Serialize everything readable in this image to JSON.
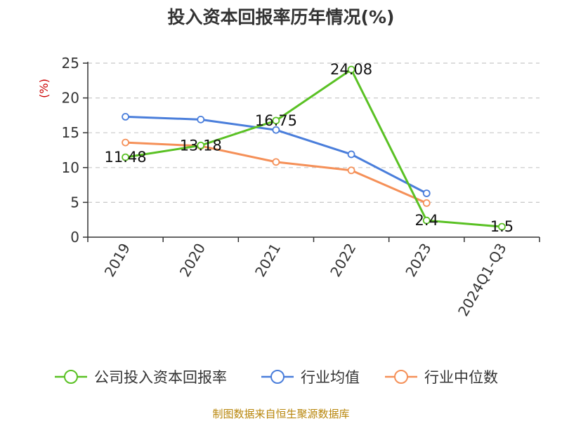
{
  "chart_data": {
    "type": "line",
    "title": "投入资本回报率历年情况(%)",
    "ylabel": "(%)",
    "xlabel": "",
    "categories": [
      "2019",
      "2020",
      "2021",
      "2022",
      "2023",
      "2024Q1-Q3"
    ],
    "ylim": [
      0,
      25
    ],
    "yticks": [
      "0",
      "5",
      "10",
      "15",
      "20",
      "25"
    ],
    "grid": true,
    "legend_position": "bottom",
    "series": [
      {
        "name": "公司投入资本回报率",
        "color": "#5ac124",
        "values": [
          11.48,
          13.18,
          16.75,
          24.08,
          2.4,
          1.5
        ],
        "labels": [
          "11.48",
          "13.18",
          "16.75",
          "24.08",
          "2.4",
          "1.5"
        ]
      },
      {
        "name": "行业均值",
        "color": "#4a7edb",
        "values": [
          17.3,
          16.9,
          15.4,
          11.9,
          6.3,
          null
        ]
      },
      {
        "name": "行业中位数",
        "color": "#f59058",
        "values": [
          13.6,
          13.1,
          10.8,
          9.6,
          4.9,
          null
        ]
      }
    ]
  },
  "source_text": "制图数据来自恒生聚源数据库"
}
